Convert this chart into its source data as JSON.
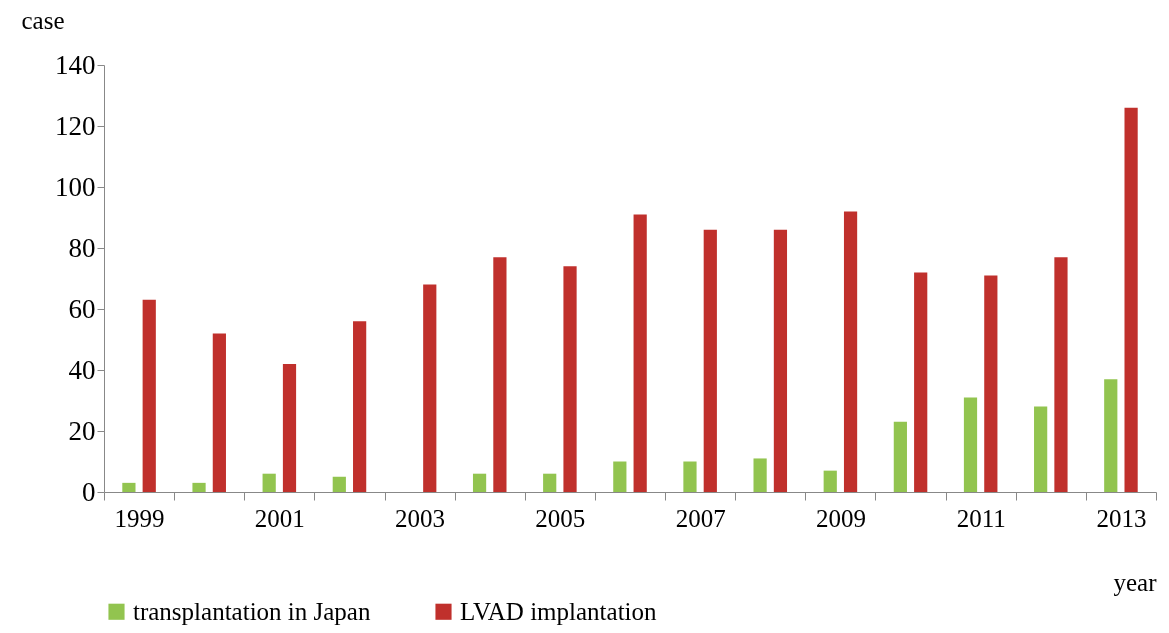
{
  "chart_data": {
    "type": "bar",
    "xlabel": "year",
    "ylabel": "case",
    "categories": [
      "1999",
      null,
      "2001",
      null,
      "2003",
      null,
      "2005",
      null,
      "2007",
      null,
      "2009",
      null,
      "2011",
      null,
      "2013"
    ],
    "series": [
      {
        "name": "transplantation in Japan",
        "color": "#92c44f",
        "values": [
          3,
          3,
          6,
          5,
          0,
          6,
          6,
          10,
          10,
          11,
          7,
          23,
          31,
          28,
          37
        ]
      },
      {
        "name": "LVAD implantation",
        "color": "#c0302c",
        "values": [
          63,
          52,
          42,
          56,
          68,
          77,
          74,
          91,
          86,
          86,
          92,
          72,
          71,
          77,
          126
        ]
      }
    ],
    "ylim": [
      0,
      140
    ],
    "yticks": [
      0,
      20,
      40,
      60,
      80,
      100,
      120,
      140
    ],
    "grid": false,
    "legend": "bottom"
  }
}
